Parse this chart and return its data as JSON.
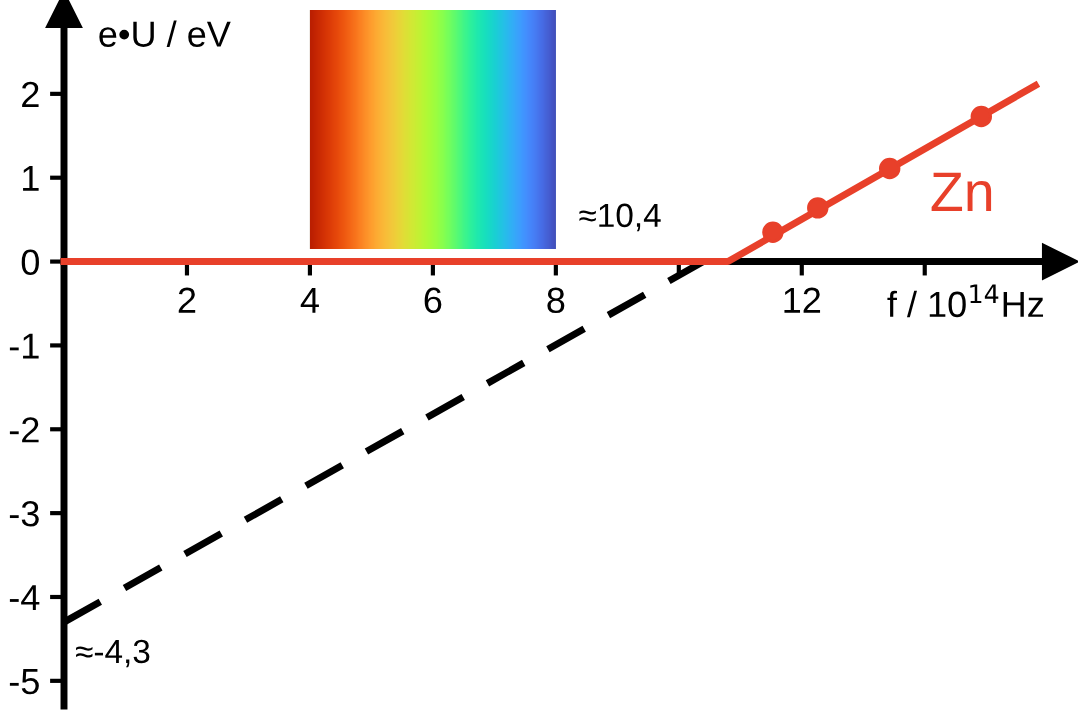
{
  "chart_data": {
    "type": "line",
    "xlabel": "f / 10$^{14}$Hz",
    "ylabel": "e•U / eV",
    "xlim": [
      0,
      16.2
    ],
    "ylim": [
      -5.3,
      3
    ],
    "xticks": [
      2,
      4,
      6,
      8,
      {
        "value": 10,
        "label": null
      },
      12,
      {
        "value": 14,
        "label": null
      }
    ],
    "yticks": [
      -5,
      -4,
      -3,
      -2,
      -1,
      0,
      1,
      2
    ],
    "series": [
      {
        "name": "Zn",
        "color": "#e8402a",
        "x": [
          0,
          10.8,
          15.8
        ],
        "values": [
          0,
          0,
          2.1
        ]
      },
      {
        "type": "scatter",
        "color": "#e8402a",
        "x": [
          11.53,
          12.26,
          13.43,
          14.92
        ],
        "values": [
          0.35,
          0.64,
          1.11,
          1.73
        ]
      },
      {
        "type": "line",
        "line_style": "dashed",
        "color": "#000000",
        "x": [
          0,
          10.4
        ],
        "values": [
          -4.3,
          0
        ]
      }
    ],
    "bands": [
      {
        "axis": "x",
        "from": 4,
        "to": 8
      }
    ],
    "annotations": [
      {
        "text": "≈10,4",
        "x": 10.4,
        "y": 0
      },
      {
        "text": "≈-4,3",
        "x": 0,
        "y": -4.3
      }
    ],
    "grid": false,
    "legend": false
  }
}
